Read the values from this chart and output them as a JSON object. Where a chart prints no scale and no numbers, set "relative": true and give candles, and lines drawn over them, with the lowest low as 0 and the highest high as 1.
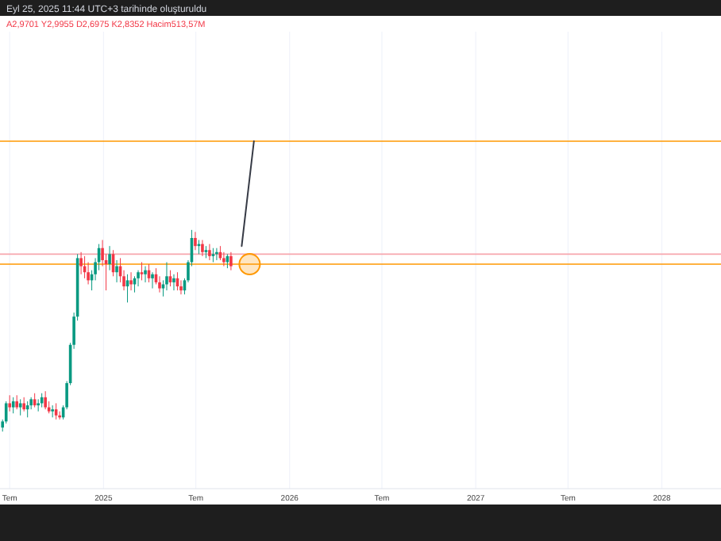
{
  "chart_data": {
    "type": "candlestick",
    "title": "Eyl 25, 2025 11:44 UTC+3 tarihinde oluşturuldu",
    "subtitle": "A2,9701 Y2,9955 D2,6975 K2,8352 Hacim513,57M",
    "relative": true,
    "grid": "x",
    "xlim": [
      "2024-06-12",
      "2028-04-26"
    ],
    "xticks": [
      {
        "value": "2024-07-01",
        "label": "Tem"
      },
      {
        "value": "2025-01-01",
        "label": "2025"
      },
      {
        "value": "2025-07-01",
        "label": "Tem"
      },
      {
        "value": "2026-01-01",
        "label": "2026"
      },
      {
        "value": "2026-07-01",
        "label": "Tem"
      },
      {
        "value": "2027-01-01",
        "label": "2027"
      },
      {
        "value": "2027-07-01",
        "label": "Tem"
      },
      {
        "value": "2028-01-01",
        "label": "2028"
      }
    ],
    "x": [
      "2024-06-17",
      "2024-06-24",
      "2024-07-01",
      "2024-07-08",
      "2024-07-15",
      "2024-07-22",
      "2024-07-29",
      "2024-08-05",
      "2024-08-12",
      "2024-08-19",
      "2024-08-26",
      "2024-09-02",
      "2024-09-09",
      "2024-09-16",
      "2024-09-23",
      "2024-09-30",
      "2024-10-07",
      "2024-10-14",
      "2024-10-21",
      "2024-10-28",
      "2024-11-04",
      "2024-11-11",
      "2024-11-18",
      "2024-11-25",
      "2024-12-02",
      "2024-12-09",
      "2024-12-16",
      "2024-12-23",
      "2024-12-30",
      "2025-01-06",
      "2025-01-13",
      "2025-01-20",
      "2025-01-27",
      "2025-02-03",
      "2025-02-10",
      "2025-02-17",
      "2025-02-24",
      "2025-03-03",
      "2025-03-10",
      "2025-03-17",
      "2025-03-24",
      "2025-03-31",
      "2025-04-07",
      "2025-04-14",
      "2025-04-21",
      "2025-04-28",
      "2025-05-05",
      "2025-05-12",
      "2025-05-19",
      "2025-05-26",
      "2025-06-02",
      "2025-06-09",
      "2025-06-16",
      "2025-06-23",
      "2025-06-30",
      "2025-07-07",
      "2025-07-14",
      "2025-07-21",
      "2025-07-28",
      "2025-08-04",
      "2025-08-11",
      "2025-08-18",
      "2025-08-25",
      "2025-09-01",
      "2025-09-08"
    ],
    "ohlc": [
      [
        0.02,
        0.06,
        0,
        0.05
      ],
      [
        0.05,
        0.15,
        0.04,
        0.14
      ],
      [
        0.14,
        0.18,
        0.1,
        0.12
      ],
      [
        0.12,
        0.17,
        0.09,
        0.15
      ],
      [
        0.15,
        0.18,
        0.11,
        0.12
      ],
      [
        0.12,
        0.16,
        0.08,
        0.14
      ],
      [
        0.14,
        0.17,
        0.1,
        0.11
      ],
      [
        0.11,
        0.15,
        0.07,
        0.13
      ],
      [
        0.13,
        0.17,
        0.11,
        0.16
      ],
      [
        0.16,
        0.19,
        0.12,
        0.13
      ],
      [
        0.13,
        0.16,
        0.1,
        0.14
      ],
      [
        0.14,
        0.19,
        0.12,
        0.17
      ],
      [
        0.17,
        0.2,
        0.11,
        0.12
      ],
      [
        0.12,
        0.15,
        0.09,
        0.1
      ],
      [
        0.1,
        0.13,
        0.07,
        0.11
      ],
      [
        0.11,
        0.14,
        0.06,
        0.08
      ],
      [
        0.08,
        0.1,
        0.06,
        0.07
      ],
      [
        0.07,
        0.13,
        0.06,
        0.12
      ],
      [
        0.12,
        0.25,
        0.11,
        0.24
      ],
      [
        0.24,
        0.44,
        0.23,
        0.43
      ],
      [
        0.43,
        0.59,
        0.41,
        0.57
      ],
      [
        0.57,
        0.88,
        0.55,
        0.86
      ],
      [
        0.86,
        0.89,
        0.78,
        0.82
      ],
      [
        0.82,
        0.87,
        0.76,
        0.79
      ],
      [
        0.79,
        0.84,
        0.73,
        0.75
      ],
      [
        0.75,
        0.8,
        0.7,
        0.78
      ],
      [
        0.78,
        0.86,
        0.75,
        0.84
      ],
      [
        0.84,
        0.93,
        0.8,
        0.91
      ],
      [
        0.91,
        0.95,
        0.82,
        0.85
      ],
      [
        0.85,
        0.88,
        0.7,
        0.83
      ],
      [
        0.83,
        0.92,
        0.8,
        0.88
      ],
      [
        0.88,
        0.9,
        0.77,
        0.79
      ],
      [
        0.79,
        0.85,
        0.74,
        0.82
      ],
      [
        0.82,
        0.86,
        0.74,
        0.77
      ],
      [
        0.77,
        0.8,
        0.7,
        0.72
      ],
      [
        0.72,
        0.78,
        0.64,
        0.75
      ],
      [
        0.75,
        0.79,
        0.7,
        0.73
      ],
      [
        0.73,
        0.77,
        0.69,
        0.76
      ],
      [
        0.76,
        0.8,
        0.72,
        0.79
      ],
      [
        0.79,
        0.84,
        0.75,
        0.78
      ],
      [
        0.78,
        0.82,
        0.74,
        0.8
      ],
      [
        0.8,
        0.83,
        0.74,
        0.76
      ],
      [
        0.76,
        0.79,
        0.71,
        0.78
      ],
      [
        0.78,
        0.81,
        0.73,
        0.74
      ],
      [
        0.74,
        0.77,
        0.69,
        0.71
      ],
      [
        0.71,
        0.75,
        0.67,
        0.73
      ],
      [
        0.73,
        0.84,
        0.7,
        0.77
      ],
      [
        0.77,
        0.8,
        0.72,
        0.74
      ],
      [
        0.74,
        0.78,
        0.7,
        0.76
      ],
      [
        0.76,
        0.79,
        0.7,
        0.72
      ],
      [
        0.72,
        0.75,
        0.68,
        0.7
      ],
      [
        0.7,
        0.76,
        0.68,
        0.75
      ],
      [
        0.75,
        0.85,
        0.74,
        0.84
      ],
      [
        0.84,
        1.0,
        0.82,
        0.96
      ],
      [
        0.96,
        0.99,
        0.9,
        0.92
      ],
      [
        0.92,
        0.95,
        0.88,
        0.93
      ],
      [
        0.93,
        0.95,
        0.87,
        0.89
      ],
      [
        0.89,
        0.92,
        0.86,
        0.9
      ],
      [
        0.9,
        0.93,
        0.85,
        0.87
      ],
      [
        0.87,
        0.91,
        0.84,
        0.88
      ],
      [
        0.88,
        0.91,
        0.85,
        0.89
      ],
      [
        0.89,
        0.92,
        0.85,
        0.86
      ],
      [
        0.86,
        0.89,
        0.82,
        0.84
      ],
      [
        0.84,
        0.88,
        0.81,
        0.87
      ],
      [
        0.87,
        0.89,
        0.8,
        0.82
      ]
    ],
    "series": [
      {
        "type": "line",
        "color": "#363a45",
        "x": [
          "2025-09-29",
          "2025-10-23"
        ],
        "values": [
          0.92,
          1.44
        ]
      }
    ],
    "ref_lines": [
      {
        "axis": "y",
        "value": 0.83,
        "color": "#ff9800"
      },
      {
        "axis": "y",
        "value": 0.88,
        "color": "#f7a6ad"
      },
      {
        "axis": "y",
        "value": 1.44,
        "color": "#ff9800"
      }
    ]
  }
}
